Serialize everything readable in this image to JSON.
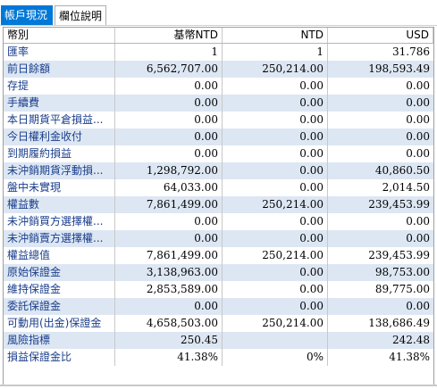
{
  "tabs": [
    {
      "label": "帳戶現況"
    },
    {
      "label": "欄位說明"
    }
  ],
  "table": {
    "headers": [
      "幣別",
      "基幣NTD",
      "NTD",
      "USD"
    ],
    "rows": [
      {
        "label": "匯率",
        "base": "1",
        "ntd": "1",
        "usd": "31.786"
      },
      {
        "label": "前日餘額",
        "base": "6,562,707.00",
        "ntd": "250,214.00",
        "usd": "198,593.49"
      },
      {
        "label": "存提",
        "base": "0.00",
        "ntd": "0.00",
        "usd": "0.00"
      },
      {
        "label": "手續費",
        "base": "0.00",
        "ntd": "0.00",
        "usd": "0.00"
      },
      {
        "label": "本日期貨平倉損益...",
        "base": "0.00",
        "ntd": "0.00",
        "usd": "0.00"
      },
      {
        "label": "今日權利金收付",
        "base": "0.00",
        "ntd": "0.00",
        "usd": "0.00"
      },
      {
        "label": "到期履約損益",
        "base": "0.00",
        "ntd": "0.00",
        "usd": "0.00"
      },
      {
        "label": "未沖銷期貨浮動損...",
        "base": "1,298,792.00",
        "ntd": "0.00",
        "usd": "40,860.50"
      },
      {
        "label": "盤中未實現",
        "base": "64,033.00",
        "ntd": "0.00",
        "usd": "2,014.50"
      },
      {
        "label": "權益數",
        "base": "7,861,499.00",
        "ntd": "250,214.00",
        "usd": "239,453.99"
      },
      {
        "label": "未沖銷買方選擇權...",
        "base": "0.00",
        "ntd": "0.00",
        "usd": "0.00"
      },
      {
        "label": "未沖銷賣方選擇權...",
        "base": "0.00",
        "ntd": "0.00",
        "usd": "0.00"
      },
      {
        "label": "權益總值",
        "base": "7,861,499.00",
        "ntd": "250,214.00",
        "usd": "239,453.99"
      },
      {
        "label": "原始保證金",
        "base": "3,138,963.00",
        "ntd": "0.00",
        "usd": "98,753.00"
      },
      {
        "label": "維持保證金",
        "base": "2,853,589.00",
        "ntd": "0.00",
        "usd": "89,775.00"
      },
      {
        "label": "委託保證金",
        "base": "0.00",
        "ntd": "0.00",
        "usd": "0.00"
      },
      {
        "label": "可動用(出金)保證金",
        "base": "4,658,503.00",
        "ntd": "250,214.00",
        "usd": "138,686.49"
      },
      {
        "label": "風險指標",
        "base": "250.45",
        "ntd": "",
        "usd": "242.48"
      },
      {
        "label": "損益保證金比",
        "base": "41.38%",
        "ntd": "0%",
        "usd": "41.38%"
      }
    ]
  }
}
